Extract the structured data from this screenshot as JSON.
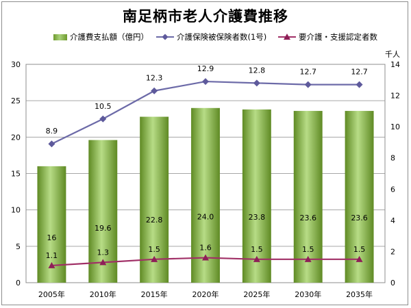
{
  "chart_data": {
    "type": "bar",
    "title": "南足柄市老人介護費推移",
    "categories": [
      "2005年",
      "2010年",
      "2015年",
      "2020年",
      "2025年",
      "2030年",
      "2035年"
    ],
    "series": [
      {
        "name": "介護費支払額（億円）",
        "type": "bar",
        "axis": "left",
        "values": [
          16,
          19.6,
          22.8,
          24.0,
          23.8,
          23.6,
          23.6
        ],
        "labels": [
          "16",
          "19.6",
          "22.8",
          "24.0",
          "23.8",
          "23.6",
          "23.6"
        ]
      },
      {
        "name": "介護保険被保険者数(1号)",
        "type": "line",
        "axis": "right",
        "values": [
          8.9,
          10.5,
          12.3,
          12.9,
          12.8,
          12.7,
          12.7
        ],
        "labels": [
          "8.9",
          "10.5",
          "12.3",
          "12.9",
          "12.8",
          "12.7",
          "12.7"
        ]
      },
      {
        "name": "要介護・支援認定者数",
        "type": "line",
        "axis": "right",
        "values": [
          1.1,
          1.3,
          1.5,
          1.6,
          1.5,
          1.5,
          1.5
        ],
        "labels": [
          "1.1",
          "1.3",
          "1.5",
          "1.6",
          "1.5",
          "1.5",
          "1.5"
        ]
      }
    ],
    "y_left": {
      "min": 0,
      "max": 30,
      "ticks": [
        "0",
        "5",
        "10",
        "15",
        "20",
        "25",
        "30"
      ]
    },
    "y_right": {
      "min": 0,
      "max": 14,
      "ticks": [
        "0",
        "2",
        "4",
        "6",
        "8",
        "10",
        "12",
        "14"
      ],
      "unit": "千人"
    },
    "grid": true,
    "legend_position": "top",
    "colors": {
      "bar_dark": "#5f8a24",
      "bar_light": "#b7dc86",
      "line1": "#6c6aa8",
      "line1_marker": "#5e5a9c",
      "line2": "#a02f66",
      "line2_marker": "#8e1f57",
      "plot_border": "#8c8c8c"
    }
  }
}
